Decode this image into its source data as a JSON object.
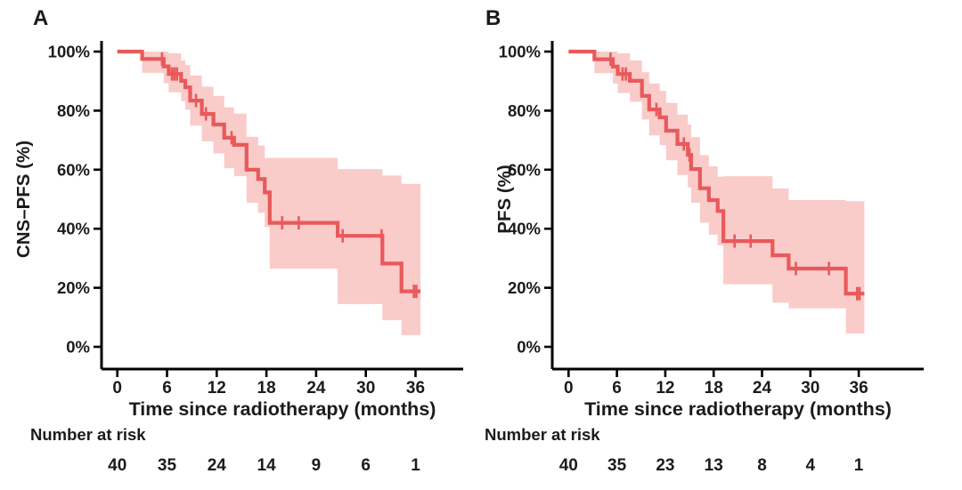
{
  "figure": {
    "background": "#ffffff",
    "text_color": "#1b1b1d",
    "axis_color": "#000000"
  },
  "chart_data": [
    {
      "type": "line",
      "subtype": "kaplan-meier-step",
      "panel_label": "A",
      "xlabel": "Time since radiotherapy (months)",
      "ylabel": "CNS–PFS (%)",
      "xlim": [
        0,
        39
      ],
      "ylim": [
        0,
        100
      ],
      "grid": false,
      "legend": "none",
      "xticks": [
        0,
        6,
        12,
        18,
        24,
        30,
        36
      ],
      "ytick_labels": [
        "0%",
        "20%",
        "40%",
        "60%",
        "80%",
        "100%"
      ],
      "line_color": "#e9595b",
      "band_color": "#f9cbc9",
      "curve_end": 36.6,
      "km_steps": [
        {
          "t": 0,
          "s": 100,
          "lo": 100,
          "hi": 100
        },
        {
          "t": 3.0,
          "s": 97.5,
          "lo": 92.8,
          "hi": 100
        },
        {
          "t": 5.6,
          "s": 95.0,
          "lo": 89.3,
          "hi": 100
        },
        {
          "t": 6.2,
          "s": 92.4,
          "lo": 86.2,
          "hi": 99.4
        },
        {
          "t": 7.7,
          "s": 90.1,
          "lo": 83.2,
          "hi": 97.0
        },
        {
          "t": 8.2,
          "s": 87.9,
          "lo": 80.3,
          "hi": 95.4
        },
        {
          "t": 8.8,
          "s": 83.4,
          "lo": 74.9,
          "hi": 91.9
        },
        {
          "t": 10.2,
          "s": 78.9,
          "lo": 69.6,
          "hi": 88.1
        },
        {
          "t": 11.6,
          "s": 75.3,
          "lo": 65.5,
          "hi": 85.0
        },
        {
          "t": 12.9,
          "s": 70.8,
          "lo": 60.5,
          "hi": 81.1
        },
        {
          "t": 14.1,
          "s": 68.4,
          "lo": 57.8,
          "hi": 79.0
        },
        {
          "t": 15.6,
          "s": 60.0,
          "lo": 48.8,
          "hi": 71.1
        },
        {
          "t": 17.0,
          "s": 56.8,
          "lo": 45.4,
          "hi": 68.2
        },
        {
          "t": 17.8,
          "s": 52.3,
          "lo": 40.6,
          "hi": 63.9
        },
        {
          "t": 18.4,
          "s": 42.0,
          "lo": 26.5,
          "hi": 64.0
        },
        {
          "t": 26.6,
          "s": 37.6,
          "lo": 14.5,
          "hi": 60.2
        },
        {
          "t": 32.0,
          "s": 28.2,
          "lo": 9.0,
          "hi": 58.0
        },
        {
          "t": 34.3,
          "s": 18.8,
          "lo": 4.0,
          "hi": 55.2
        }
      ],
      "censor_times": [
        5.4,
        6.6,
        6.9,
        7.2,
        9.5,
        10.7,
        13.8,
        19.9,
        21.9,
        27.2,
        31.9,
        35.8,
        36.1
      ],
      "risk_table": {
        "label": "Number at risk",
        "times": [
          0,
          6,
          12,
          18,
          24,
          30,
          36
        ],
        "counts": [
          40,
          35,
          24,
          14,
          9,
          6,
          1
        ]
      }
    },
    {
      "type": "line",
      "subtype": "kaplan-meier-step",
      "panel_label": "B",
      "xlabel": "Time since radiotherapy (months)",
      "ylabel": "PFS (%)",
      "xlim": [
        0,
        39
      ],
      "ylim": [
        0,
        100
      ],
      "grid": false,
      "legend": "none",
      "xticks": [
        0,
        6,
        12,
        18,
        24,
        30,
        36
      ],
      "ytick_labels": [
        "0%",
        "20%",
        "40%",
        "60%",
        "80%",
        "100%"
      ],
      "line_color": "#e9595b",
      "band_color": "#f9cbc9",
      "curve_end": 36.7,
      "km_steps": [
        {
          "t": 0,
          "s": 100,
          "lo": 100,
          "hi": 100
        },
        {
          "t": 3.2,
          "s": 97.4,
          "lo": 92.7,
          "hi": 100
        },
        {
          "t": 5.5,
          "s": 94.9,
          "lo": 89.2,
          "hi": 100
        },
        {
          "t": 6.1,
          "s": 92.4,
          "lo": 86.0,
          "hi": 99.4
        },
        {
          "t": 7.6,
          "s": 90.1,
          "lo": 83.0,
          "hi": 97.0
        },
        {
          "t": 9.1,
          "s": 85.0,
          "lo": 77.0,
          "hi": 93.0
        },
        {
          "t": 10.0,
          "s": 80.4,
          "lo": 71.6,
          "hi": 89.2
        },
        {
          "t": 11.3,
          "s": 77.7,
          "lo": 68.3,
          "hi": 86.7
        },
        {
          "t": 12.1,
          "s": 73.2,
          "lo": 63.2,
          "hi": 82.6
        },
        {
          "t": 13.5,
          "s": 68.7,
          "lo": 58.2,
          "hi": 78.6
        },
        {
          "t": 14.8,
          "s": 65.0,
          "lo": 54.0,
          "hi": 75.3
        },
        {
          "t": 15.2,
          "s": 60.2,
          "lo": 48.8,
          "hi": 71.0
        },
        {
          "t": 16.3,
          "s": 53.7,
          "lo": 42.1,
          "hi": 64.9
        },
        {
          "t": 17.4,
          "s": 49.7,
          "lo": 38.0,
          "hi": 61.1
        },
        {
          "t": 18.5,
          "s": 46.0,
          "lo": 34.4,
          "hi": 57.6
        },
        {
          "t": 19.2,
          "s": 35.8,
          "lo": 21.2,
          "hi": 57.8
        },
        {
          "t": 25.3,
          "s": 31.0,
          "lo": 15.0,
          "hi": 53.6
        },
        {
          "t": 27.3,
          "s": 26.5,
          "lo": 13.0,
          "hi": 49.7
        },
        {
          "t": 34.4,
          "s": 18.0,
          "lo": 4.5,
          "hi": 49.3
        }
      ],
      "censor_times": [
        5.2,
        6.7,
        7.1,
        10.9,
        14.3,
        15.0,
        20.6,
        22.6,
        28.2,
        32.3,
        35.8,
        36.1
      ],
      "risk_table": {
        "label": "Number at risk",
        "times": [
          0,
          6,
          12,
          18,
          24,
          30,
          36
        ],
        "counts": [
          40,
          35,
          23,
          13,
          8,
          4,
          1
        ]
      }
    }
  ]
}
